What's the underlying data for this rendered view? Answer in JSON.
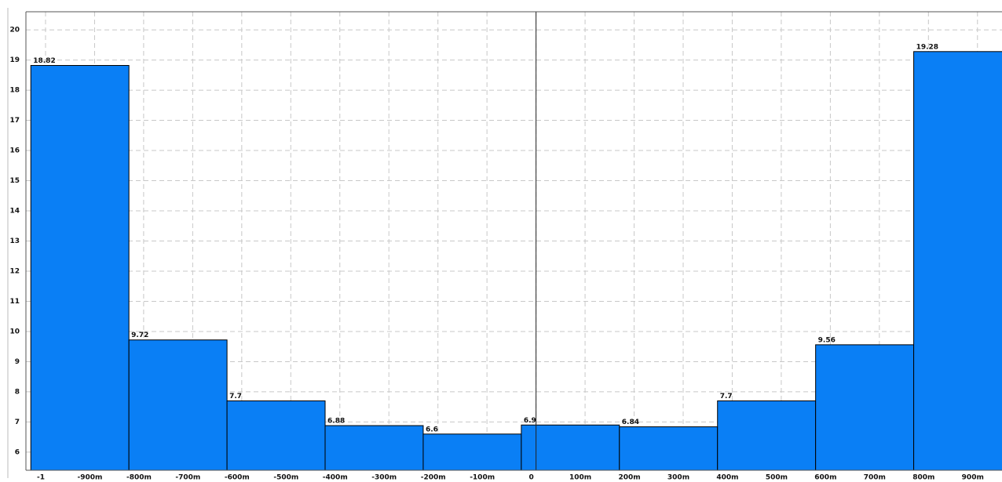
{
  "chart_data": {
    "type": "histogram",
    "bins": [
      -1.03,
      -0.83,
      -0.63,
      -0.43,
      -0.23,
      -0.03,
      0.17,
      0.37,
      0.57,
      0.77,
      0.97
    ],
    "values": [
      18.82,
      9.72,
      7.7,
      6.88,
      6.6,
      6.9,
      6.84,
      7.7,
      9.56,
      19.28
    ],
    "color": "#0a7ff5",
    "xlim": [
      -1.04,
      0.95
    ],
    "xticks": [
      -1,
      {
        "value": -0.9,
        "label": "-900m"
      },
      {
        "value": -0.8,
        "label": "-800m"
      },
      {
        "value": -0.7,
        "label": "-700m"
      },
      {
        "value": -0.6,
        "label": "-600m"
      },
      {
        "value": -0.5,
        "label": "-500m"
      },
      {
        "value": -0.4,
        "label": "-400m"
      },
      {
        "value": -0.3,
        "label": "-300m"
      },
      {
        "value": -0.2,
        "label": "-200m"
      },
      {
        "value": -0.1,
        "label": "-100m"
      },
      0,
      {
        "value": 0.1,
        "label": "100m"
      },
      {
        "value": 0.2,
        "label": "200m"
      },
      {
        "value": 0.3,
        "label": "300m"
      },
      {
        "value": 0.4,
        "label": "400m"
      },
      {
        "value": 0.5,
        "label": "500m"
      },
      {
        "value": 0.6,
        "label": "600m"
      },
      {
        "value": 0.7,
        "label": "700m"
      },
      {
        "value": 0.8,
        "label": "800m"
      },
      {
        "value": 0.9,
        "label": "900m"
      }
    ],
    "ylim": [
      5.4,
      20.6
    ],
    "yticks": [
      6,
      7,
      8,
      9,
      10,
      11,
      12,
      13,
      14,
      15,
      16,
      17,
      18,
      19,
      20
    ],
    "grid": true
  }
}
